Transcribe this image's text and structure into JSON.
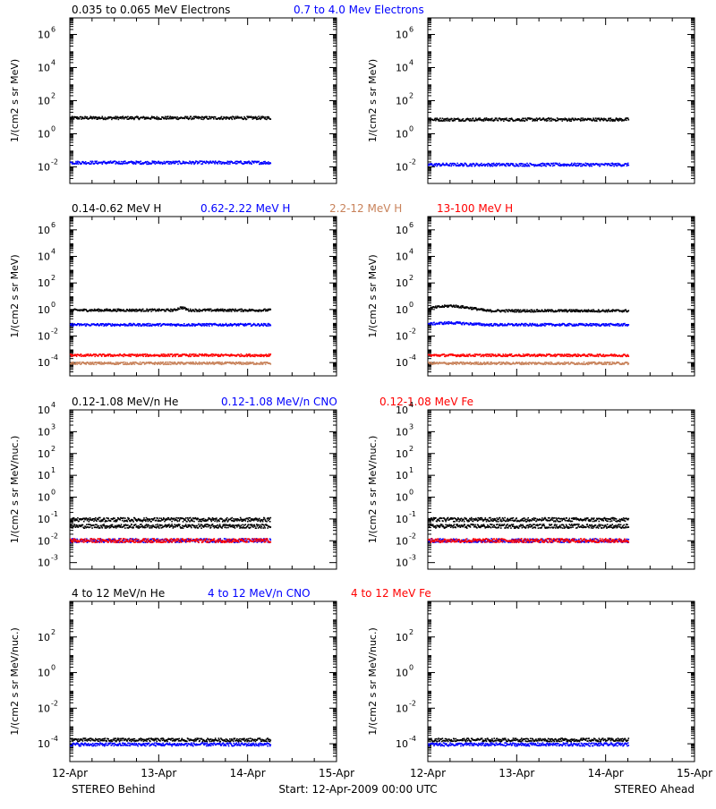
{
  "footer": {
    "left": "STEREO Behind",
    "center": "Start: 12-Apr-2009 00:00 UTC",
    "right": "STEREO Ahead"
  },
  "x_ticks": [
    "12-Apr",
    "13-Apr",
    "14-Apr",
    "15-Apr"
  ],
  "chart_data": [
    {
      "type": "scatter",
      "row": 1,
      "title_series": [
        {
          "name": "0.035 to 0.065 MeV Electrons",
          "color": "#000000"
        },
        {
          "name": "0.7 to 4.0 Mev Electrons",
          "color": "#0000ff"
        }
      ],
      "ylabel": "1/(cm2 s sr MeV)",
      "yscale": "log",
      "ylim": [
        0.001,
        10000000
      ],
      "ytick_exponents": [
        -2,
        0,
        2,
        4,
        6
      ],
      "xlim_days": [
        0,
        3
      ],
      "data_end_day": 2.25,
      "panels": [
        {
          "spacecraft": "STEREO Behind",
          "series": [
            {
              "color": "#000000",
              "level": 10,
              "bump": null
            },
            {
              "color": "#0000ff",
              "level": 0.02,
              "bump": null
            }
          ]
        },
        {
          "spacecraft": "STEREO Ahead",
          "series": [
            {
              "color": "#000000",
              "level": 8,
              "bump": null
            },
            {
              "color": "#0000ff",
              "level": 0.015,
              "bump": null
            }
          ]
        }
      ]
    },
    {
      "type": "scatter",
      "row": 2,
      "title_series": [
        {
          "name": "0.14-0.62 MeV H",
          "color": "#000000"
        },
        {
          "name": "0.62-2.22 MeV H",
          "color": "#0000ff"
        },
        {
          "name": "2.2-12 MeV H",
          "color": "#c8825a"
        },
        {
          "name": "13-100 MeV H",
          "color": "#ff0000"
        }
      ],
      "ylabel": "1/(cm2 s sr MeV)",
      "yscale": "log",
      "ylim": [
        1e-05,
        10000000
      ],
      "ytick_exponents": [
        -4,
        -2,
        0,
        2,
        4,
        6
      ],
      "xlim_days": [
        0,
        3
      ],
      "data_end_day": 2.25,
      "panels": [
        {
          "spacecraft": "STEREO Behind",
          "series": [
            {
              "color": "#000000",
              "level": 1.0,
              "bump": {
                "day": 1.25,
                "width": 0.08,
                "factor": 1.6
              }
            },
            {
              "color": "#0000ff",
              "level": 0.08,
              "bump": null
            },
            {
              "color": "#c8825a",
              "level": 0.0001,
              "bump": null
            },
            {
              "color": "#ff0000",
              "level": 0.0004,
              "bump": null
            }
          ]
        },
        {
          "spacecraft": "STEREO Ahead",
          "series": [
            {
              "color": "#000000",
              "level": 0.9,
              "bump": {
                "day": 0.25,
                "width": 0.4,
                "factor": 2.4
              }
            },
            {
              "color": "#0000ff",
              "level": 0.08,
              "bump": {
                "day": 0.25,
                "width": 0.4,
                "factor": 1.4
              }
            },
            {
              "color": "#c8825a",
              "level": 0.0001,
              "bump": null
            },
            {
              "color": "#ff0000",
              "level": 0.0004,
              "bump": null
            }
          ]
        }
      ]
    },
    {
      "type": "scatter",
      "row": 3,
      "title_series": [
        {
          "name": "0.12-1.08 MeV/n He",
          "color": "#000000"
        },
        {
          "name": "0.12-1.08 MeV/n CNO",
          "color": "#0000ff"
        },
        {
          "name": "0.12-1.08 MeV Fe",
          "color": "#ff0000"
        }
      ],
      "ylabel": "1/(cm2 s sr MeV/nuc.)",
      "yscale": "log",
      "ylim": [
        0.0005,
        10000
      ],
      "ytick_exponents": [
        -3,
        -2,
        -1,
        0,
        1,
        2,
        3,
        4
      ],
      "xlim_days": [
        0,
        3
      ],
      "data_end_day": 2.25,
      "panels": [
        {
          "spacecraft": "STEREO Behind",
          "series": [
            {
              "color": "#000000",
              "level": 0.05,
              "bump": null
            },
            {
              "color": "#000000",
              "level": 0.1,
              "bump": null
            },
            {
              "color": "#0000ff",
              "level": 0.011,
              "bump": null
            },
            {
              "color": "#ff0000",
              "level": 0.011,
              "bump": null
            }
          ]
        },
        {
          "spacecraft": "STEREO Ahead",
          "series": [
            {
              "color": "#000000",
              "level": 0.05,
              "bump": null
            },
            {
              "color": "#000000",
              "level": 0.1,
              "bump": null
            },
            {
              "color": "#0000ff",
              "level": 0.011,
              "bump": null
            },
            {
              "color": "#ff0000",
              "level": 0.011,
              "bump": null
            }
          ]
        }
      ]
    },
    {
      "type": "scatter",
      "row": 4,
      "title_series": [
        {
          "name": "4 to 12 MeV/n He",
          "color": "#000000"
        },
        {
          "name": "4 to 12 MeV/n CNO",
          "color": "#0000ff"
        },
        {
          "name": "4 to 12 MeV Fe",
          "color": "#ff0000"
        }
      ],
      "ylabel": "1/(cm2 s sr MeV/nuc.)",
      "yscale": "log",
      "ylim": [
        1e-05,
        10000
      ],
      "ytick_exponents": [
        -4,
        -2,
        0,
        2
      ],
      "xlim_days": [
        0,
        3
      ],
      "data_end_day": 2.25,
      "panels": [
        {
          "spacecraft": "STEREO Behind",
          "series": [
            {
              "color": "#0000ff",
              "level": 0.0001,
              "bump": null
            },
            {
              "color": "#000000",
              "level": 0.00018,
              "bump": null
            }
          ]
        },
        {
          "spacecraft": "STEREO Ahead",
          "series": [
            {
              "color": "#0000ff",
              "level": 0.0001,
              "bump": null
            },
            {
              "color": "#000000",
              "level": 0.00018,
              "bump": null
            }
          ]
        }
      ]
    }
  ]
}
